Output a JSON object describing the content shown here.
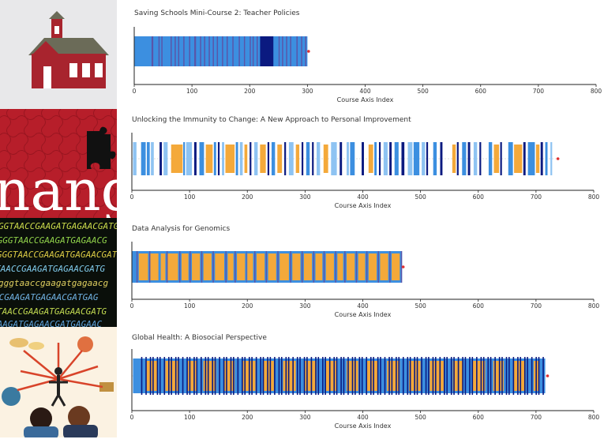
{
  "colors": {
    "light_blue": "#8ec3f2",
    "mid_blue": "#3c8fe0",
    "orange": "#f4a93a",
    "navy": "#0b1a80",
    "purple": "#5a55a8",
    "end_dot": "#e03030",
    "axis": "#222222"
  },
  "thumbnails": [
    {
      "kind": "schoolhouse-icon"
    },
    {
      "kind": "immunity-puzzle-image",
      "text": "nang"
    },
    {
      "kind": "dna-sequence-image",
      "lines": [
        "GGTAACCGAAGATGAGAACGATG",
        "CGGGTAACCGAAGATGAGAACG",
        "GGGTAACCGAAGATGAGAACGAT",
        "TAACCGAAGATGAGAACGATG",
        "gggtaaccgaagatgagaacg",
        "CCGAAGATGAGAACGATGAG",
        "TAACCGAAGATGAGAACGATG",
        "GAAGATGAGAACGATGAGAAC"
      ]
    },
    {
      "kind": "global-health-illustration"
    }
  ],
  "chart_data": [
    {
      "type": "timeline-barcode",
      "title": "Saving Schools Mini-Course 2: Teacher Policies",
      "xlabel": "Course Axis Index",
      "xlim": [
        0,
        800
      ],
      "xticks": [
        0,
        100,
        200,
        300,
        400,
        500,
        600,
        700,
        800
      ],
      "end": 302,
      "segments": [
        {
          "start": 0,
          "end": 300,
          "type": "mid_blue"
        },
        {
          "start": 30,
          "end": 33,
          "type": "purple"
        },
        {
          "start": 42,
          "end": 44,
          "type": "purple"
        },
        {
          "start": 47,
          "end": 49,
          "type": "purple"
        },
        {
          "start": 63,
          "end": 65,
          "type": "purple"
        },
        {
          "start": 70,
          "end": 72,
          "type": "purple"
        },
        {
          "start": 76,
          "end": 78,
          "type": "purple"
        },
        {
          "start": 85,
          "end": 87,
          "type": "purple"
        },
        {
          "start": 95,
          "end": 97,
          "type": "purple"
        },
        {
          "start": 104,
          "end": 107,
          "type": "purple"
        },
        {
          "start": 114,
          "end": 116,
          "type": "purple"
        },
        {
          "start": 121,
          "end": 123,
          "type": "purple"
        },
        {
          "start": 129,
          "end": 131,
          "type": "purple"
        },
        {
          "start": 136,
          "end": 138,
          "type": "purple"
        },
        {
          "start": 143,
          "end": 145,
          "type": "purple"
        },
        {
          "start": 152,
          "end": 154,
          "type": "purple"
        },
        {
          "start": 160,
          "end": 162,
          "type": "purple"
        },
        {
          "start": 170,
          "end": 172,
          "type": "purple"
        },
        {
          "start": 181,
          "end": 183,
          "type": "purple"
        },
        {
          "start": 190,
          "end": 192,
          "type": "purple"
        },
        {
          "start": 200,
          "end": 202,
          "type": "purple"
        },
        {
          "start": 205,
          "end": 207,
          "type": "purple"
        },
        {
          "start": 212,
          "end": 214,
          "type": "purple"
        },
        {
          "start": 218,
          "end": 241,
          "type": "navy"
        },
        {
          "start": 250,
          "end": 252,
          "type": "purple"
        },
        {
          "start": 256,
          "end": 258,
          "type": "purple"
        },
        {
          "start": 263,
          "end": 265,
          "type": "purple"
        },
        {
          "start": 270,
          "end": 272,
          "type": "purple"
        },
        {
          "start": 281,
          "end": 283,
          "type": "purple"
        },
        {
          "start": 289,
          "end": 291,
          "type": "purple"
        },
        {
          "start": 296,
          "end": 298,
          "type": "purple"
        }
      ]
    },
    {
      "type": "timeline-barcode",
      "title": "Unlocking the Immunity to Change: A New Approach to Personal Improvement",
      "xlabel": "Course Axis Index",
      "xlim": [
        0,
        800
      ],
      "xticks": [
        0,
        100,
        200,
        300,
        400,
        500,
        600,
        700,
        800
      ],
      "end": 738,
      "segments": [
        {
          "start": 2,
          "end": 8,
          "type": "light_blue"
        },
        {
          "start": 16,
          "end": 24,
          "type": "mid_blue"
        },
        {
          "start": 26,
          "end": 31,
          "type": "mid_blue"
        },
        {
          "start": 33,
          "end": 38,
          "type": "light_blue"
        },
        {
          "start": 48,
          "end": 52,
          "type": "navy"
        },
        {
          "start": 55,
          "end": 62,
          "type": "light_blue"
        },
        {
          "start": 68,
          "end": 88,
          "type": "orange"
        },
        {
          "start": 89,
          "end": 92,
          "type": "mid_blue"
        },
        {
          "start": 94,
          "end": 104,
          "type": "light_blue"
        },
        {
          "start": 108,
          "end": 112,
          "type": "navy"
        },
        {
          "start": 117,
          "end": 125,
          "type": "mid_blue"
        },
        {
          "start": 128,
          "end": 140,
          "type": "orange"
        },
        {
          "start": 142,
          "end": 146,
          "type": "mid_blue"
        },
        {
          "start": 149,
          "end": 152,
          "type": "navy"
        },
        {
          "start": 156,
          "end": 160,
          "type": "light_blue"
        },
        {
          "start": 162,
          "end": 178,
          "type": "orange"
        },
        {
          "start": 180,
          "end": 184,
          "type": "mid_blue"
        },
        {
          "start": 187,
          "end": 192,
          "type": "light_blue"
        },
        {
          "start": 195,
          "end": 200,
          "type": "orange"
        },
        {
          "start": 204,
          "end": 207,
          "type": "navy"
        },
        {
          "start": 212,
          "end": 218,
          "type": "light_blue"
        },
        {
          "start": 222,
          "end": 232,
          "type": "orange"
        },
        {
          "start": 235,
          "end": 238,
          "type": "navy"
        },
        {
          "start": 242,
          "end": 248,
          "type": "mid_blue"
        },
        {
          "start": 252,
          "end": 260,
          "type": "orange"
        },
        {
          "start": 264,
          "end": 267,
          "type": "navy"
        },
        {
          "start": 272,
          "end": 280,
          "type": "light_blue"
        },
        {
          "start": 284,
          "end": 290,
          "type": "orange"
        },
        {
          "start": 294,
          "end": 297,
          "type": "navy"
        },
        {
          "start": 302,
          "end": 308,
          "type": "mid_blue"
        },
        {
          "start": 312,
          "end": 315,
          "type": "navy"
        },
        {
          "start": 320,
          "end": 326,
          "type": "light_blue"
        },
        {
          "start": 332,
          "end": 340,
          "type": "orange"
        },
        {
          "start": 345,
          "end": 355,
          "type": "light_blue"
        },
        {
          "start": 360,
          "end": 364,
          "type": "navy"
        },
        {
          "start": 372,
          "end": 376,
          "type": "light_blue"
        },
        {
          "start": 378,
          "end": 386,
          "type": "mid_blue"
        },
        {
          "start": 398,
          "end": 402,
          "type": "navy"
        },
        {
          "start": 410,
          "end": 418,
          "type": "orange"
        },
        {
          "start": 420,
          "end": 424,
          "type": "mid_blue"
        },
        {
          "start": 428,
          "end": 431,
          "type": "navy"
        },
        {
          "start": 436,
          "end": 443,
          "type": "light_blue"
        },
        {
          "start": 446,
          "end": 450,
          "type": "navy"
        },
        {
          "start": 455,
          "end": 462,
          "type": "mid_blue"
        },
        {
          "start": 467,
          "end": 472,
          "type": "navy"
        },
        {
          "start": 478,
          "end": 486,
          "type": "light_blue"
        },
        {
          "start": 488,
          "end": 498,
          "type": "mid_blue"
        },
        {
          "start": 502,
          "end": 508,
          "type": "light_blue"
        },
        {
          "start": 510,
          "end": 513,
          "type": "navy"
        },
        {
          "start": 522,
          "end": 528,
          "type": "mid_blue"
        },
        {
          "start": 534,
          "end": 538,
          "type": "navy"
        },
        {
          "start": 555,
          "end": 561,
          "type": "orange"
        },
        {
          "start": 563,
          "end": 566,
          "type": "navy"
        },
        {
          "start": 572,
          "end": 579,
          "type": "mid_blue"
        },
        {
          "start": 582,
          "end": 586,
          "type": "navy"
        },
        {
          "start": 592,
          "end": 598,
          "type": "light_blue"
        },
        {
          "start": 602,
          "end": 605,
          "type": "navy"
        },
        {
          "start": 618,
          "end": 624,
          "type": "mid_blue"
        },
        {
          "start": 627,
          "end": 636,
          "type": "orange"
        },
        {
          "start": 638,
          "end": 641,
          "type": "navy"
        },
        {
          "start": 652,
          "end": 660,
          "type": "mid_blue"
        },
        {
          "start": 662,
          "end": 676,
          "type": "orange"
        },
        {
          "start": 678,
          "end": 682,
          "type": "navy"
        },
        {
          "start": 686,
          "end": 698,
          "type": "mid_blue"
        },
        {
          "start": 700,
          "end": 706,
          "type": "orange"
        },
        {
          "start": 708,
          "end": 712,
          "type": "navy"
        },
        {
          "start": 716,
          "end": 720,
          "type": "mid_blue"
        },
        {
          "start": 725,
          "end": 728,
          "type": "light_blue"
        }
      ]
    },
    {
      "type": "timeline-barcode",
      "title": "Data Analysis for Genomics",
      "xlabel": "Course Axis Index",
      "xlim": [
        0,
        800
      ],
      "xticks": [
        0,
        100,
        200,
        300,
        400,
        500,
        600,
        700,
        800
      ],
      "end": 470,
      "segments": [
        {
          "start": 0,
          "end": 468,
          "type": "mid_blue"
        },
        {
          "start": 12,
          "end": 28,
          "type": "orange"
        },
        {
          "start": 32,
          "end": 46,
          "type": "orange"
        },
        {
          "start": 50,
          "end": 58,
          "type": "orange"
        },
        {
          "start": 62,
          "end": 80,
          "type": "orange"
        },
        {
          "start": 86,
          "end": 98,
          "type": "orange"
        },
        {
          "start": 104,
          "end": 118,
          "type": "orange"
        },
        {
          "start": 124,
          "end": 138,
          "type": "orange"
        },
        {
          "start": 144,
          "end": 160,
          "type": "orange"
        },
        {
          "start": 166,
          "end": 176,
          "type": "orange"
        },
        {
          "start": 182,
          "end": 196,
          "type": "orange"
        },
        {
          "start": 200,
          "end": 210,
          "type": "orange"
        },
        {
          "start": 216,
          "end": 230,
          "type": "orange"
        },
        {
          "start": 236,
          "end": 250,
          "type": "orange"
        },
        {
          "start": 256,
          "end": 272,
          "type": "orange"
        },
        {
          "start": 278,
          "end": 292,
          "type": "orange"
        },
        {
          "start": 298,
          "end": 312,
          "type": "orange"
        },
        {
          "start": 318,
          "end": 330,
          "type": "orange"
        },
        {
          "start": 336,
          "end": 350,
          "type": "orange"
        },
        {
          "start": 356,
          "end": 366,
          "type": "orange"
        },
        {
          "start": 372,
          "end": 386,
          "type": "orange"
        },
        {
          "start": 392,
          "end": 404,
          "type": "orange"
        },
        {
          "start": 410,
          "end": 424,
          "type": "orange"
        },
        {
          "start": 430,
          "end": 444,
          "type": "orange"
        },
        {
          "start": 450,
          "end": 464,
          "type": "orange"
        },
        {
          "start": 8,
          "end": 10,
          "type": "purple"
        },
        {
          "start": 30,
          "end": 32,
          "type": "purple"
        },
        {
          "start": 60,
          "end": 62,
          "type": "purple"
        },
        {
          "start": 82,
          "end": 84,
          "type": "purple"
        },
        {
          "start": 100,
          "end": 102,
          "type": "purple"
        },
        {
          "start": 120,
          "end": 122,
          "type": "purple"
        },
        {
          "start": 140,
          "end": 142,
          "type": "purple"
        },
        {
          "start": 162,
          "end": 164,
          "type": "purple"
        },
        {
          "start": 178,
          "end": 180,
          "type": "purple"
        },
        {
          "start": 198,
          "end": 199,
          "type": "purple"
        },
        {
          "start": 212,
          "end": 214,
          "type": "purple"
        },
        {
          "start": 232,
          "end": 234,
          "type": "purple"
        },
        {
          "start": 252,
          "end": 254,
          "type": "purple"
        },
        {
          "start": 274,
          "end": 276,
          "type": "purple"
        },
        {
          "start": 294,
          "end": 296,
          "type": "purple"
        },
        {
          "start": 314,
          "end": 316,
          "type": "purple"
        },
        {
          "start": 332,
          "end": 334,
          "type": "purple"
        },
        {
          "start": 352,
          "end": 354,
          "type": "purple"
        },
        {
          "start": 368,
          "end": 370,
          "type": "purple"
        },
        {
          "start": 388,
          "end": 390,
          "type": "purple"
        },
        {
          "start": 406,
          "end": 408,
          "type": "purple"
        },
        {
          "start": 426,
          "end": 428,
          "type": "purple"
        },
        {
          "start": 446,
          "end": 448,
          "type": "purple"
        },
        {
          "start": 466,
          "end": 468,
          "type": "purple"
        }
      ]
    },
    {
      "type": "timeline-barcode",
      "title": "Global Health: A Biosocial Perspective",
      "xlabel": "Course Axis Index",
      "xlim": [
        0,
        800
      ],
      "xticks": [
        0,
        100,
        200,
        300,
        400,
        500,
        600,
        700,
        800
      ],
      "end": 720,
      "segments": [
        {
          "start": 2,
          "end": 716,
          "type": "mid_blue"
        },
        {
          "start": 24,
          "end": 44,
          "type": "orange"
        },
        {
          "start": 58,
          "end": 82,
          "type": "orange"
        },
        {
          "start": 96,
          "end": 112,
          "type": "orange"
        },
        {
          "start": 124,
          "end": 146,
          "type": "orange"
        },
        {
          "start": 160,
          "end": 178,
          "type": "orange"
        },
        {
          "start": 192,
          "end": 214,
          "type": "orange"
        },
        {
          "start": 228,
          "end": 246,
          "type": "orange"
        },
        {
          "start": 262,
          "end": 284,
          "type": "orange"
        },
        {
          "start": 298,
          "end": 320,
          "type": "orange"
        },
        {
          "start": 336,
          "end": 356,
          "type": "orange"
        },
        {
          "start": 372,
          "end": 392,
          "type": "orange"
        },
        {
          "start": 406,
          "end": 426,
          "type": "orange"
        },
        {
          "start": 442,
          "end": 464,
          "type": "orange"
        },
        {
          "start": 480,
          "end": 500,
          "type": "orange"
        },
        {
          "start": 516,
          "end": 540,
          "type": "orange"
        },
        {
          "start": 556,
          "end": 574,
          "type": "orange"
        },
        {
          "start": 590,
          "end": 612,
          "type": "orange"
        },
        {
          "start": 626,
          "end": 644,
          "type": "orange"
        },
        {
          "start": 660,
          "end": 682,
          "type": "orange"
        },
        {
          "start": 696,
          "end": 706,
          "type": "orange"
        }
      ],
      "event_bars": {
        "start": 16,
        "end": 716,
        "count": 110,
        "type": "navy"
      }
    }
  ]
}
